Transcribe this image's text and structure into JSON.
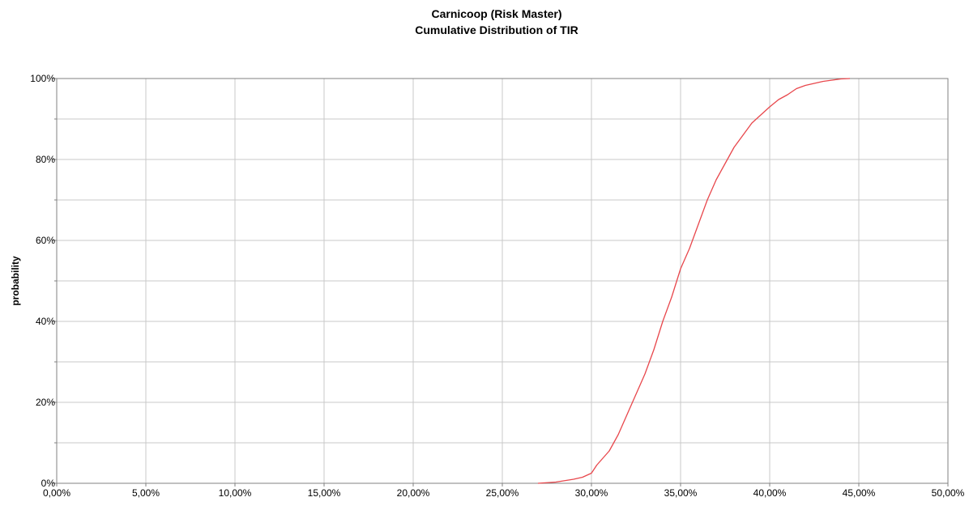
{
  "chart_data": {
    "type": "line",
    "title": "Carnicoop (Risk Master)",
    "subtitle": "Cumulative Distribution of TIR",
    "xlabel": "",
    "ylabel": "probability",
    "xlim": [
      0,
      50
    ],
    "ylim": [
      0,
      100
    ],
    "x_tick_values": [
      0,
      5,
      10,
      15,
      20,
      25,
      30,
      35,
      40,
      45,
      50
    ],
    "x_tick_labels": [
      "0,00%",
      "5,00%",
      "10,00%",
      "15,00%",
      "20,00%",
      "25,00%",
      "30,00%",
      "35,00%",
      "40,00%",
      "45,00%",
      "50,00%"
    ],
    "y_tick_values": [
      0,
      20,
      40,
      60,
      80,
      100
    ],
    "y_tick_labels": [
      "0%",
      "20%",
      "40%",
      "60%",
      "80%",
      "100%"
    ],
    "y_minor_tick_values": [
      10,
      30,
      50,
      70,
      90
    ],
    "grid": true,
    "legend": "none",
    "series": [
      {
        "color": "#e8474c",
        "x": [
          27.0,
          28.0,
          29.0,
          29.5,
          30.0,
          30.3,
          30.5,
          31.0,
          31.5,
          32.0,
          32.5,
          33.0,
          33.5,
          34.0,
          34.5,
          35.0,
          35.5,
          36.0,
          36.5,
          37.0,
          37.5,
          38.0,
          38.5,
          39.0,
          39.5,
          40.0,
          40.5,
          41.0,
          41.5,
          42.0,
          42.5,
          43.0,
          43.5,
          44.0,
          44.5
        ],
        "y": [
          0,
          0.3,
          1.0,
          1.5,
          2.5,
          4.5,
          5.5,
          8.0,
          12.0,
          17.0,
          22.0,
          27.0,
          33.0,
          40.0,
          46.0,
          53.0,
          58.0,
          64.0,
          70.0,
          75.0,
          79.0,
          83.0,
          86.0,
          89.0,
          91.0,
          93.0,
          94.8,
          96.0,
          97.5,
          98.3,
          98.8,
          99.3,
          99.6,
          99.9,
          100
        ]
      }
    ]
  }
}
